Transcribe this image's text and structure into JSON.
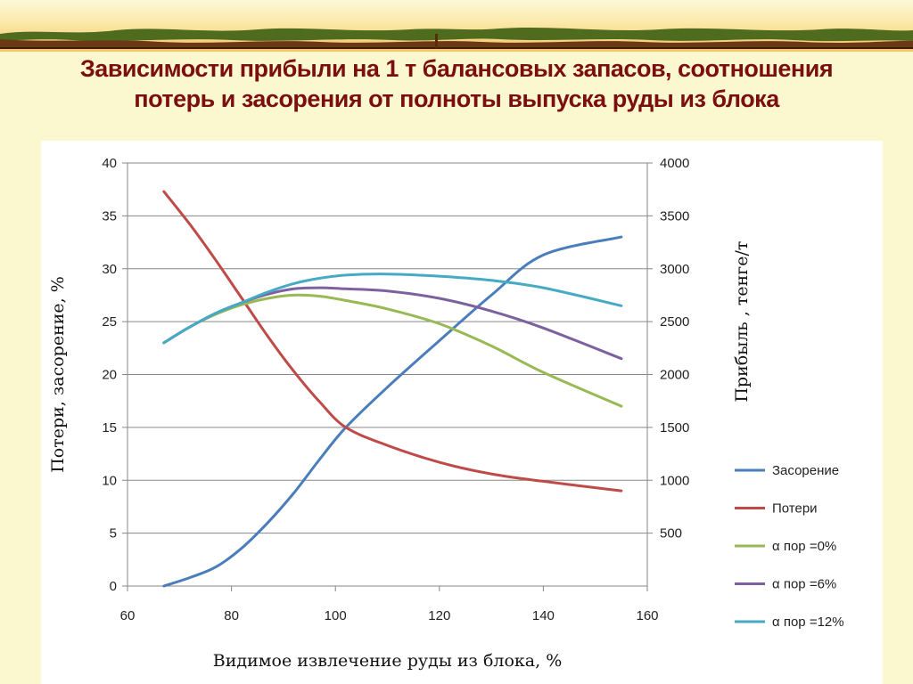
{
  "title": {
    "line1": "Зависимости прибыли на 1 т балансовых запасов, соотношения",
    "line2": "потерь и засорения от полноты выпуска руды из блока"
  },
  "chart_data": {
    "type": "line",
    "xlabel": "Видимое извлечение руды из блока, %",
    "ylabel": "Потери, засорение, %",
    "y2label": "Прибыль , тенге/т",
    "xlim": [
      60,
      160
    ],
    "ylim": [
      0,
      40
    ],
    "y2lim": [
      0,
      4000
    ],
    "x_ticks": [
      "60",
      "80",
      "100",
      "120",
      "140",
      "160"
    ],
    "y_ticks": [
      "0",
      "5",
      "10",
      "15",
      "20",
      "25",
      "30",
      "35",
      "40"
    ],
    "y2_ticks": [
      "500",
      "1000",
      "1500",
      "2000",
      "2500",
      "3000",
      "3500",
      "4000"
    ],
    "grid": "horizontal",
    "legend_position": "right",
    "series": [
      {
        "name": "Засорение",
        "axis": "left",
        "color": "#4a7ebb",
        "x": [
          67,
          72,
          77,
          82,
          87,
          92,
          97,
          102,
          110,
          120,
          130,
          140,
          155
        ],
        "y": [
          0,
          0.8,
          1.8,
          3.6,
          6,
          8.8,
          12,
          15,
          18.8,
          23.2,
          27.5,
          31.3,
          33
        ]
      },
      {
        "name": "Потери",
        "axis": "left",
        "color": "#be4b48",
        "x": [
          67,
          72,
          77,
          82,
          87,
          92,
          97,
          102,
          110,
          120,
          130,
          140,
          155
        ],
        "y": [
          37.3,
          34.2,
          30.8,
          27.2,
          23.6,
          20.3,
          17.4,
          15,
          13.3,
          11.7,
          10.6,
          9.9,
          9
        ]
      },
      {
        "name": "α пор =0%",
        "axis": "right",
        "color": "#98b954",
        "x": [
          67,
          72,
          77,
          82,
          87,
          92,
          97,
          102,
          110,
          120,
          130,
          140,
          155
        ],
        "y": [
          2300,
          2450,
          2570,
          2660,
          2720,
          2750,
          2740,
          2700,
          2620,
          2480,
          2270,
          2020,
          1700
        ]
      },
      {
        "name": "α пор =6%",
        "axis": "right",
        "color": "#7d60a0",
        "x": [
          67,
          72,
          77,
          82,
          87,
          92,
          97,
          102,
          110,
          120,
          130,
          140,
          155
        ],
        "y": [
          2300,
          2450,
          2580,
          2680,
          2760,
          2810,
          2820,
          2810,
          2790,
          2720,
          2600,
          2440,
          2150
        ]
      },
      {
        "name": "α пор =12%",
        "axis": "right",
        "color": "#46aac5",
        "x": [
          67,
          72,
          77,
          82,
          87,
          92,
          97,
          102,
          110,
          120,
          130,
          140,
          155
        ],
        "y": [
          2300,
          2450,
          2580,
          2680,
          2780,
          2860,
          2910,
          2940,
          2950,
          2930,
          2890,
          2820,
          2650
        ]
      }
    ]
  }
}
